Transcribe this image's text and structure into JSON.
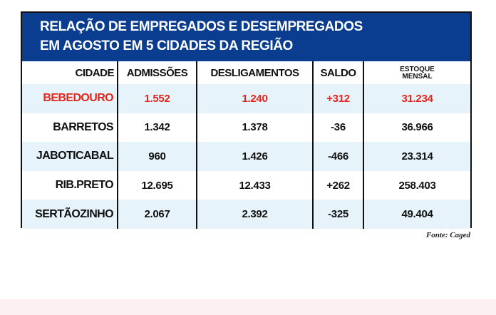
{
  "title": {
    "line1": "RELAÇÃO DE EMPREGADOS E DESEMPREGADOS",
    "line2": "EM AGOSTO EM 5 CIDADES DA REGIÃO"
  },
  "columns": {
    "cidade": "CIDADE",
    "admissoes": "ADMISSÕES",
    "desligamentos": "DESLIGAMENTOS",
    "saldo": "SALDO",
    "estoque_line1": "ESTOQUE",
    "estoque_line2": "MENSAL"
  },
  "rows": [
    {
      "cidade": "BEBEDOURO",
      "admissoes": "1.552",
      "desligamentos": "1.240",
      "saldo": "+312",
      "estoque": "31.234"
    },
    {
      "cidade": "BARRETOS",
      "admissoes": "1.342",
      "desligamentos": "1.378",
      "saldo": "-36",
      "estoque": "36.966"
    },
    {
      "cidade": "JABOTICABAL",
      "admissoes": "960",
      "desligamentos": "1.426",
      "saldo": "-466",
      "estoque": "23.314"
    },
    {
      "cidade": "RIB.PRETO",
      "admissoes": "12.695",
      "desligamentos": "12.433",
      "saldo": "+262",
      "estoque": "258.403"
    },
    {
      "cidade": "SERTÃOZINHO",
      "admissoes": "2.067",
      "desligamentos": "2.392",
      "saldo": "-325",
      "estoque": "49.404"
    }
  ],
  "source": "Fonte: Caged",
  "colors": {
    "title_bg": "#0a3d8f",
    "highlight": "#e3261b",
    "row_shade": "#e6f3fb"
  }
}
